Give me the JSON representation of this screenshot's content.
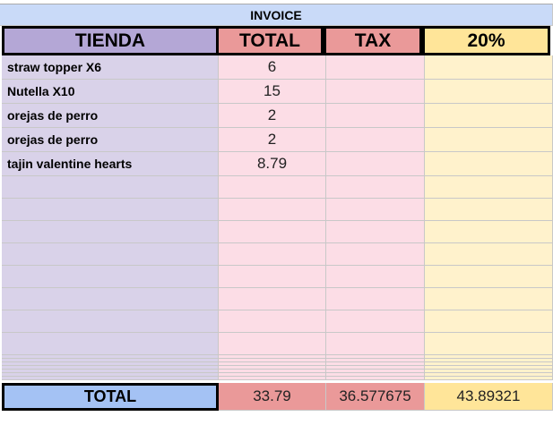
{
  "title": "INVOICE",
  "header": [
    "TIENDA",
    "TOTAL",
    "TAX",
    "20%"
  ],
  "rows": [
    {
      "item": "straw topper X6",
      "total": 6
    },
    {
      "item": "Nutella X10",
      "total": 15
    },
    {
      "item": "orejas de perro",
      "total": 2
    },
    {
      "item": "orejas de perro",
      "total": 2
    },
    {
      "item": "tajin valentine hearts",
      "total": 8.79
    }
  ],
  "totals": {
    "label": "TOTAL",
    "total": 33.79,
    "tax": 36.577675,
    "pct": 43.89321
  }
}
